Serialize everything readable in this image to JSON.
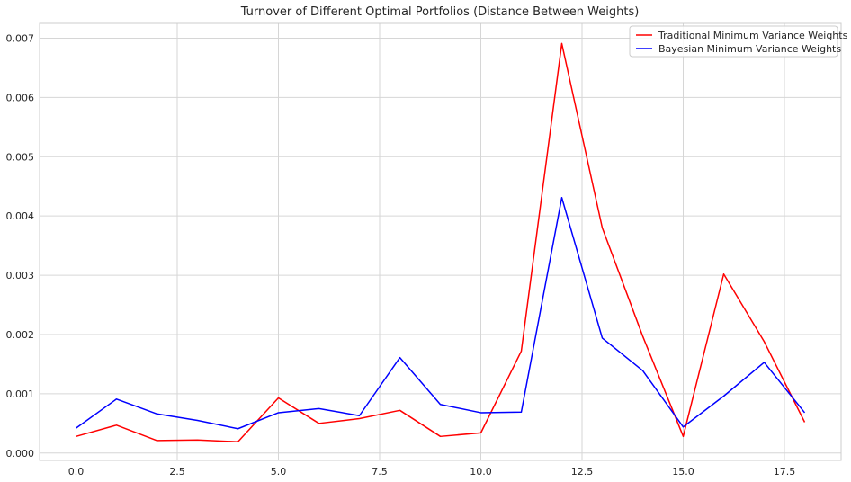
{
  "chart_data": {
    "type": "line",
    "title": "Turnover of Different Optimal Portfolios (Distance Between Weights)",
    "xlabel": "",
    "ylabel": "",
    "x": [
      0,
      1,
      2,
      3,
      4,
      5,
      6,
      7,
      8,
      9,
      10,
      11,
      12,
      13,
      14,
      15,
      16,
      17,
      18
    ],
    "xlim": [
      -0.9,
      18.9
    ],
    "ylim": [
      -0.000125,
      0.00725
    ],
    "xticks": [
      0.0,
      2.5,
      5.0,
      7.5,
      10.0,
      12.5,
      15.0,
      17.5
    ],
    "xtick_labels": [
      "0.0",
      "2.5",
      "5.0",
      "7.5",
      "10.0",
      "12.5",
      "15.0",
      "17.5"
    ],
    "yticks": [
      0.0,
      0.001,
      0.002,
      0.003,
      0.004,
      0.005,
      0.006,
      0.007
    ],
    "ytick_labels": [
      "0.000",
      "0.001",
      "0.002",
      "0.003",
      "0.004",
      "0.005",
      "0.006",
      "0.007"
    ],
    "grid": true,
    "legend_position": "top-right",
    "series": [
      {
        "name": "Traditional Minimum Variance Weights",
        "color": "#ff0000",
        "values": [
          0.00028,
          0.00047,
          0.00021,
          0.00022,
          0.00019,
          0.00093,
          0.0005,
          0.00058,
          0.00072,
          0.00028,
          0.00034,
          0.00172,
          0.00691,
          0.0038,
          0.00197,
          0.00028,
          0.00302,
          0.00188,
          0.00052
        ]
      },
      {
        "name": "Bayesian Minimum Variance Weights",
        "color": "#0000ff",
        "values": [
          0.00042,
          0.00091,
          0.00066,
          0.00055,
          0.00041,
          0.00068,
          0.00075,
          0.00063,
          0.00161,
          0.00082,
          0.00068,
          0.00069,
          0.00431,
          0.00194,
          0.00139,
          0.00044,
          0.00096,
          0.00153,
          0.00068
        ]
      }
    ]
  }
}
